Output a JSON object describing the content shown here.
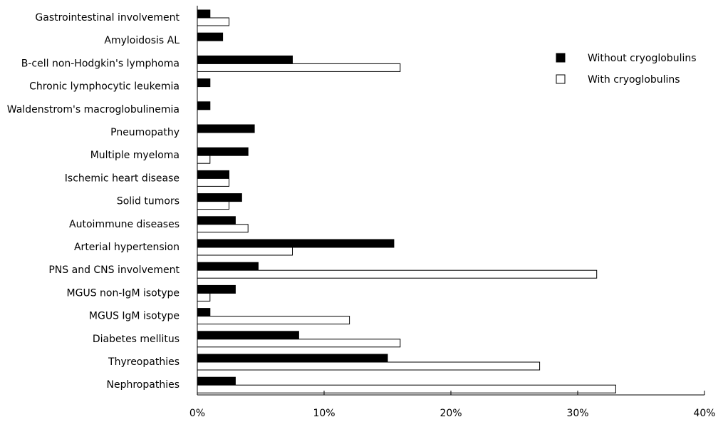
{
  "chart_data": {
    "type": "bar",
    "orientation": "horizontal",
    "categories": [
      "Gastrointestinal involvement",
      "Amyloidosis AL",
      "B-cell non-Hodgkin's lymphoma",
      "Chronic lymphocytic leukemia",
      "Waldenstrom's macroglobulinemia",
      "Pneumopathy",
      "Multiple myeloma",
      "Ischemic heart disease",
      "Solid tumors",
      "Autoimmune diseases",
      "Arterial hypertension",
      "PNS and CNS involvement",
      "MGUS non-IgM isotype",
      "MGUS IgM isotype",
      "Diabetes mellitus",
      "Thyreopathies",
      "Nephropathies"
    ],
    "series": [
      {
        "name": "Without cryoglobulins",
        "color": "#000000",
        "values": [
          1.0,
          2.0,
          7.5,
          1.0,
          1.0,
          4.5,
          4.0,
          2.5,
          3.5,
          3.0,
          15.5,
          4.8,
          3.0,
          1.0,
          8.0,
          15.0,
          3.0
        ]
      },
      {
        "name": "With cryoglobulins",
        "color": "#ffffff",
        "values": [
          2.5,
          0,
          16.0,
          0,
          0,
          0,
          1.0,
          2.5,
          2.5,
          4.0,
          7.5,
          31.5,
          1.0,
          12.0,
          16.0,
          27.0,
          33.0
        ]
      }
    ],
    "xlim": [
      0,
      40
    ],
    "x_ticks": [
      "0%",
      "10%",
      "20%",
      "30%",
      "40%"
    ],
    "xlabel": "",
    "ylabel": "",
    "title": "",
    "grid": false,
    "legend_position": "top-right"
  }
}
